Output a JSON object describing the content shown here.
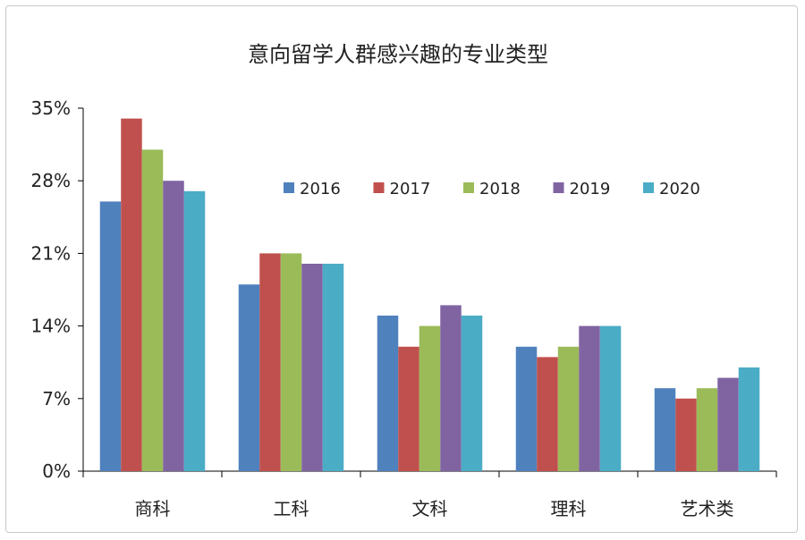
{
  "chart_data": {
    "type": "bar",
    "title": "意向留学人群感兴趣的专业类型",
    "xlabel": "",
    "ylabel": "",
    "categories": [
      "商科",
      "工科",
      "文科",
      "理科",
      "艺术类"
    ],
    "series": [
      {
        "name": "2016",
        "color": "#4f81bd",
        "values": [
          26,
          18,
          15,
          12,
          8
        ]
      },
      {
        "name": "2017",
        "color": "#c0504d",
        "values": [
          34,
          21,
          12,
          11,
          7
        ]
      },
      {
        "name": "2018",
        "color": "#9bbb59",
        "values": [
          31,
          21,
          14,
          12,
          8
        ]
      },
      {
        "name": "2019",
        "color": "#8064a2",
        "values": [
          28,
          20,
          16,
          14,
          9
        ]
      },
      {
        "name": "2020",
        "color": "#4bacc6",
        "values": [
          27,
          20,
          15,
          14,
          10
        ]
      }
    ],
    "y_ticks": [
      0,
      7,
      14,
      21,
      28,
      35
    ],
    "y_tick_labels": [
      "0%",
      "7%",
      "14%",
      "21%",
      "28%",
      "35%"
    ],
    "ylim": [
      0,
      35
    ],
    "grid": false,
    "legend": "top-right",
    "axis_color": "#000000"
  }
}
